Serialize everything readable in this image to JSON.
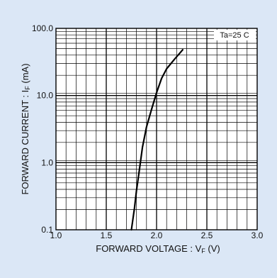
{
  "chart_data": {
    "type": "line",
    "title": "",
    "xlabel": "FORWARD  VOLTAGE : V",
    "xlabel_sub": "F",
    "xlabel_unit": "  (V)",
    "ylabel": "FORWARD  CURRENT : I",
    "ylabel_sub": "F",
    "ylabel_unit": " (mA)",
    "annotation": "Ta=25 C",
    "xlim": [
      1.0,
      3.0
    ],
    "ylim": [
      0.1,
      100.0
    ],
    "yscale": "log",
    "grid": true,
    "x_ticks": [
      "1.0",
      "1.5",
      "2.0",
      "2.5",
      "3.0"
    ],
    "y_ticks": [
      "0.1",
      "1.0",
      "10.0",
      "100.0"
    ],
    "series": [
      {
        "x": [
          1.75,
          1.78,
          1.8,
          1.83,
          1.86,
          1.9,
          1.95,
          2.0,
          2.05,
          2.1,
          2.18,
          2.26
        ],
        "y": [
          0.1,
          0.21,
          0.38,
          0.8,
          1.7,
          3.4,
          6.2,
          11.0,
          18.0,
          25.0,
          35.0,
          48.0
        ]
      }
    ],
    "colors": {
      "background": "#dbe7f6",
      "plot_area": "#ffffff",
      "line": "#000000"
    }
  }
}
